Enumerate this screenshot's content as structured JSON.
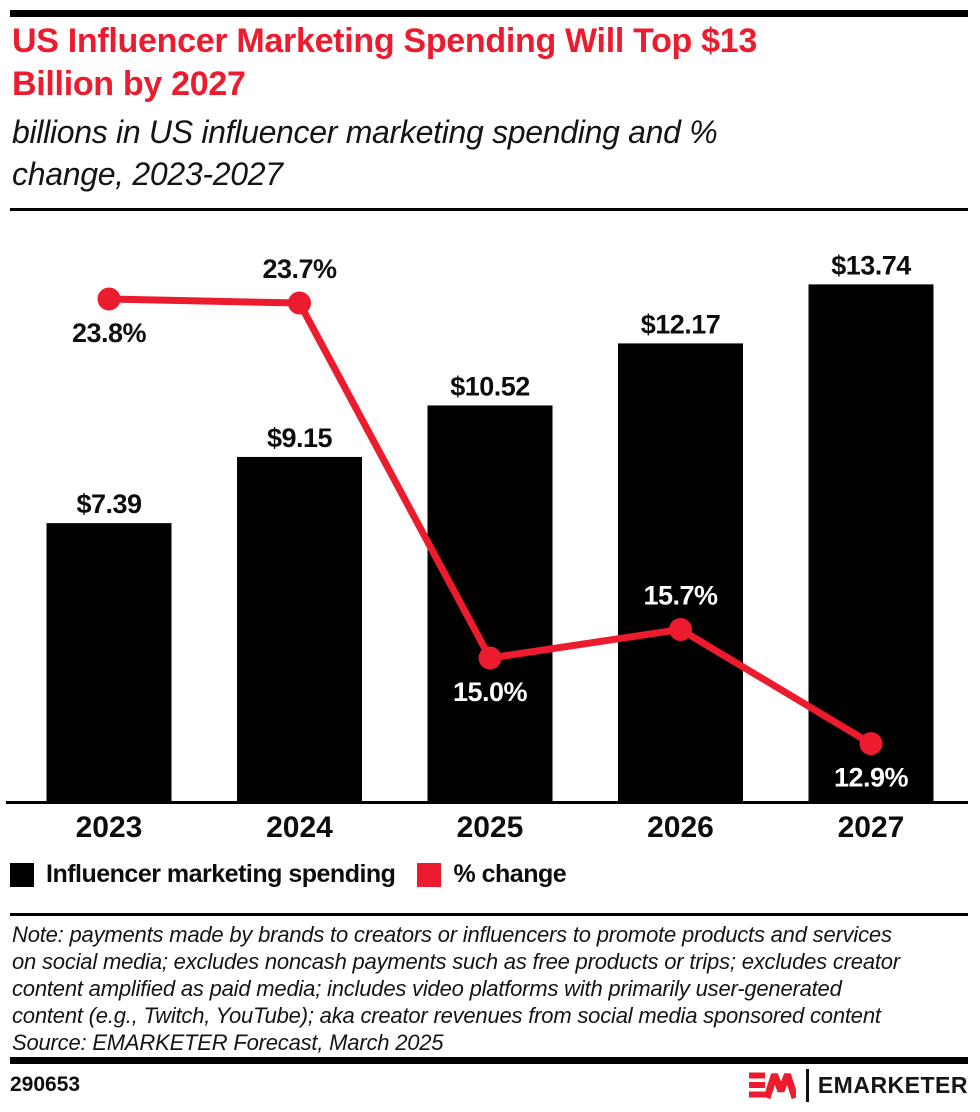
{
  "header": {
    "title": "US Influencer Marketing Spending Will Top $13 Billion by 2027",
    "title_lines": [
      "US Influencer Marketing Spending Will Top $13",
      "Billion by 2027"
    ],
    "subtitle": "billions in US influencer marketing spending and % change, 2023-2027",
    "subtitle_lines": [
      "billions in US influencer marketing spending and %",
      "change, 2023-2027"
    ]
  },
  "chart_data": {
    "type": "bar+line",
    "title": "US Influencer Marketing Spending Will Top $13 Billion by 2027",
    "subtitle": "billions in US influencer marketing spending and % change, 2023-2027",
    "categories": [
      "2023",
      "2024",
      "2025",
      "2026",
      "2027"
    ],
    "series": [
      {
        "name": "Influencer marketing spending",
        "type": "bar",
        "unit": "billions USD",
        "color": "#000000",
        "values": [
          7.39,
          9.15,
          10.52,
          12.17,
          13.74
        ],
        "labels": [
          "$7.39",
          "$9.15",
          "$10.52",
          "$12.17",
          "$13.74"
        ]
      },
      {
        "name": "% change",
        "type": "line",
        "unit": "%",
        "color": "#EC1B2E",
        "values": [
          23.8,
          23.7,
          15.0,
          15.7,
          12.9
        ],
        "labels": [
          "23.8%",
          "23.7%",
          "15.0%",
          "15.7%",
          "12.9%"
        ],
        "label_placement": [
          "below",
          "above",
          "below",
          "above",
          "below"
        ],
        "label_colors": [
          "#111111",
          "#111111",
          "#ffffff",
          "#ffffff",
          "#ffffff"
        ]
      }
    ],
    "ylim_bar": [
      0,
      15.3
    ],
    "grid": false,
    "legend_position": "bottom"
  },
  "note": {
    "lines": [
      "Note: payments made by brands to creators or influencers to promote products and services",
      "on social media; excludes noncash payments such as free products or trips; excludes creator",
      "content amplified as paid media; includes video platforms with primarily user-generated",
      "content (e.g., Twitch, YouTube); aka creator revenues from social media sponsored content"
    ],
    "source": "Source: EMARKETER Forecast, March 2025"
  },
  "footer": {
    "chart_id": "290653",
    "brand_wordmark": "EMARKETER"
  }
}
